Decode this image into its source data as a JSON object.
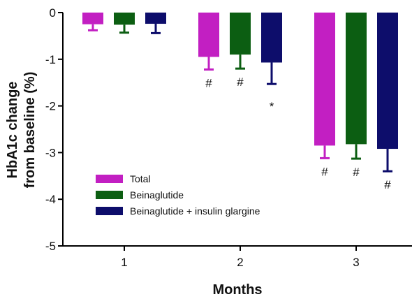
{
  "chart_data": {
    "type": "bar",
    "title": "",
    "xlabel": "Months",
    "ylabel_lines": [
      "HbA1c change",
      "from baseline (%)"
    ],
    "categories": [
      "1",
      "2",
      "3"
    ],
    "ylim": [
      -5,
      0
    ],
    "yticks": [
      "0",
      "-1",
      "-2",
      "-3",
      "-4",
      "-5"
    ],
    "ytick_values": [
      0,
      -1,
      -2,
      -3,
      -4,
      -5
    ],
    "series": [
      {
        "name": "Total",
        "color": "#c21fc2",
        "values": [
          -0.25,
          -0.95,
          -2.85
        ],
        "errors": [
          0.13,
          0.27,
          0.27
        ]
      },
      {
        "name": "Beinaglutide",
        "color": "#0c5e12",
        "values": [
          -0.26,
          -0.9,
          -2.82
        ],
        "errors": [
          0.17,
          0.3,
          0.31
        ]
      },
      {
        "name": "Beinaglutide + insulin glargine",
        "color": "#0d0d6b",
        "values": [
          -0.24,
          -1.07,
          -2.92
        ],
        "errors": [
          0.2,
          0.46,
          0.48
        ]
      }
    ],
    "annotations": [
      {
        "category": "2",
        "series": "Total",
        "text": "#"
      },
      {
        "category": "2",
        "series": "Beinaglutide",
        "text": "#"
      },
      {
        "category": "2",
        "series": "Beinaglutide + insulin glargine",
        "text": "*"
      },
      {
        "category": "3",
        "series": "Total",
        "text": "#"
      },
      {
        "category": "3",
        "series": "Beinaglutide",
        "text": "#"
      },
      {
        "category": "3",
        "series": "Beinaglutide + insulin glargine",
        "text": "#"
      }
    ],
    "legend_position": "lower-left",
    "grid": false
  }
}
